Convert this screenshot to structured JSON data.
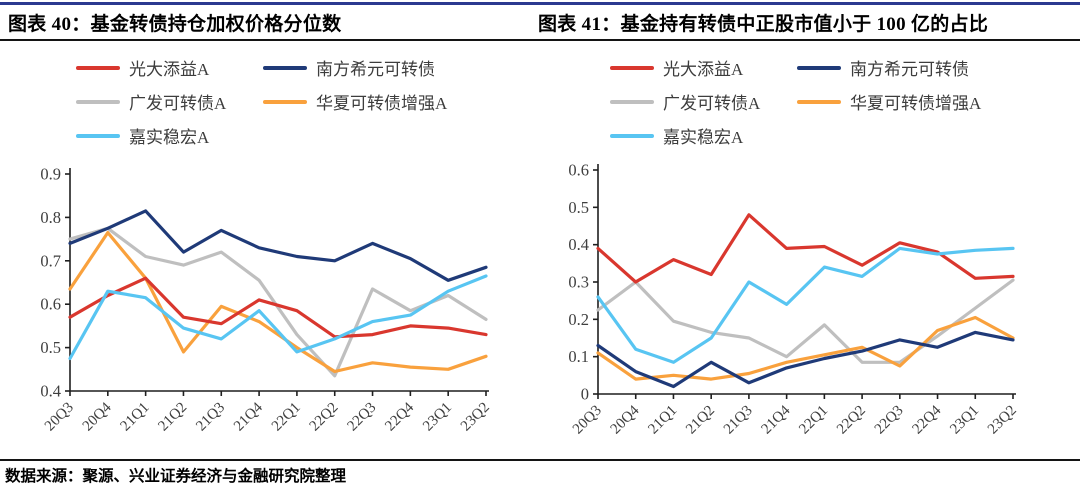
{
  "page": {
    "accent_color": "#2B3990",
    "footer_source": "数据来源：聚源、兴业证券经济与金融研究院整理"
  },
  "chart_data": [
    {
      "type": "line",
      "title": "图表 40：基金转债持仓加权价格分位数",
      "categories": [
        "20Q3",
        "20Q4",
        "21Q1",
        "21Q2",
        "21Q3",
        "21Q4",
        "22Q1",
        "22Q2",
        "22Q3",
        "22Q4",
        "23Q1",
        "23Q2"
      ],
      "ylim": [
        0.4,
        0.9
      ],
      "ytick_labels": [
        "0.9",
        "0.8",
        "0.7",
        "0.6",
        "0.5",
        "0.4"
      ],
      "grid": false,
      "legend_position": "top-left",
      "series": [
        {
          "name": "光大添益A",
          "color": "#D9372E",
          "values": [
            0.57,
            0.62,
            0.66,
            0.57,
            0.555,
            0.61,
            0.585,
            0.525,
            0.53,
            0.55,
            0.545,
            0.53
          ]
        },
        {
          "name": "南方希元可转债",
          "color": "#1F3A78",
          "values": [
            0.74,
            0.775,
            0.815,
            0.72,
            0.77,
            0.73,
            0.71,
            0.7,
            0.74,
            0.705,
            0.655,
            0.685
          ]
        },
        {
          "name": "广发可转债A",
          "color": "#BFBFBF",
          "values": [
            0.75,
            0.775,
            0.71,
            0.69,
            0.72,
            0.655,
            0.53,
            0.435,
            0.635,
            0.585,
            0.62,
            0.565
          ]
        },
        {
          "name": "华夏可转债增强A",
          "color": "#F9A13D",
          "values": [
            0.635,
            0.765,
            0.66,
            0.49,
            0.595,
            0.56,
            0.5,
            0.445,
            0.465,
            0.455,
            0.45,
            0.48
          ]
        },
        {
          "name": "嘉实稳宏A",
          "color": "#58C5F2",
          "values": [
            0.475,
            0.63,
            0.615,
            0.545,
            0.52,
            0.585,
            0.49,
            0.52,
            0.56,
            0.575,
            0.63,
            0.665
          ]
        }
      ]
    },
    {
      "type": "line",
      "title": "图表 41：基金持有转债中正股市值小于 100 亿的占比",
      "categories": [
        "20Q3",
        "20Q4",
        "21Q1",
        "21Q2",
        "21Q3",
        "21Q4",
        "22Q1",
        "22Q2",
        "22Q3",
        "22Q4",
        "23Q1",
        "23Q2"
      ],
      "ylim": [
        0,
        0.6
      ],
      "ytick_labels": [
        "0.6",
        "0.5",
        "0.4",
        "0.3",
        "0.2",
        "0.1",
        "0"
      ],
      "grid": false,
      "legend_position": "top-left",
      "series": [
        {
          "name": "光大添益A",
          "color": "#D9372E",
          "values": [
            0.39,
            0.3,
            0.36,
            0.32,
            0.48,
            0.39,
            0.395,
            0.345,
            0.405,
            0.38,
            0.31,
            0.315
          ]
        },
        {
          "name": "南方希元可转债",
          "color": "#1F3A78",
          "values": [
            0.13,
            0.06,
            0.02,
            0.085,
            0.03,
            0.07,
            0.095,
            0.115,
            0.145,
            0.125,
            0.165,
            0.145
          ]
        },
        {
          "name": "广发可转债A",
          "color": "#BFBFBF",
          "values": [
            0.225,
            0.3,
            0.195,
            0.165,
            0.15,
            0.1,
            0.185,
            0.085,
            0.085,
            0.155,
            0.23,
            0.305
          ]
        },
        {
          "name": "华夏可转债增强A",
          "color": "#F9A13D",
          "values": [
            0.11,
            0.04,
            0.05,
            0.04,
            0.055,
            0.085,
            0.105,
            0.125,
            0.075,
            0.17,
            0.205,
            0.15
          ]
        },
        {
          "name": "嘉实稳宏A",
          "color": "#58C5F2",
          "values": [
            0.26,
            0.12,
            0.085,
            0.15,
            0.3,
            0.24,
            0.34,
            0.315,
            0.39,
            0.375,
            0.385,
            0.39
          ]
        }
      ]
    }
  ]
}
